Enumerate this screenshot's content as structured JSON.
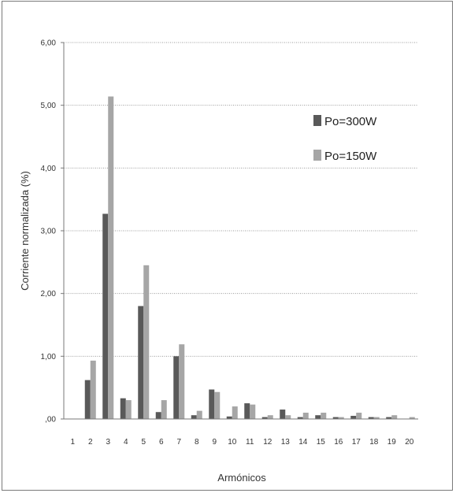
{
  "chart_data": {
    "type": "bar",
    "title": "",
    "xlabel": "Armónicos",
    "ylabel": "Corriente normalizada (%)",
    "ylim": [
      0,
      6
    ],
    "yticks": [
      ",00",
      "1,00",
      "2,00",
      "3,00",
      "4,00",
      "5,00",
      "6,00"
    ],
    "categories": [
      "1",
      "2",
      "3",
      "4",
      "5",
      "6",
      "7",
      "8",
      "9",
      "10",
      "11",
      "12",
      "13",
      "14",
      "15",
      "16",
      "17",
      "18",
      "19",
      "20"
    ],
    "grid": true,
    "legend_position": "top-right",
    "series": [
      {
        "name": "Po=300W",
        "color": "#595959",
        "values": [
          0,
          0.62,
          3.27,
          0.33,
          1.8,
          0.11,
          1.0,
          0.06,
          0.47,
          0.04,
          0.25,
          0.03,
          0.15,
          0.03,
          0.06,
          0.03,
          0.05,
          0.03,
          0.03,
          0.0
        ]
      },
      {
        "name": "Po=150W",
        "color": "#a6a6a6",
        "values": [
          0,
          0.93,
          5.14,
          0.3,
          2.45,
          0.3,
          1.19,
          0.13,
          0.43,
          0.2,
          0.23,
          0.06,
          0.06,
          0.1,
          0.1,
          0.03,
          0.1,
          0.03,
          0.06,
          0.03
        ]
      }
    ]
  }
}
